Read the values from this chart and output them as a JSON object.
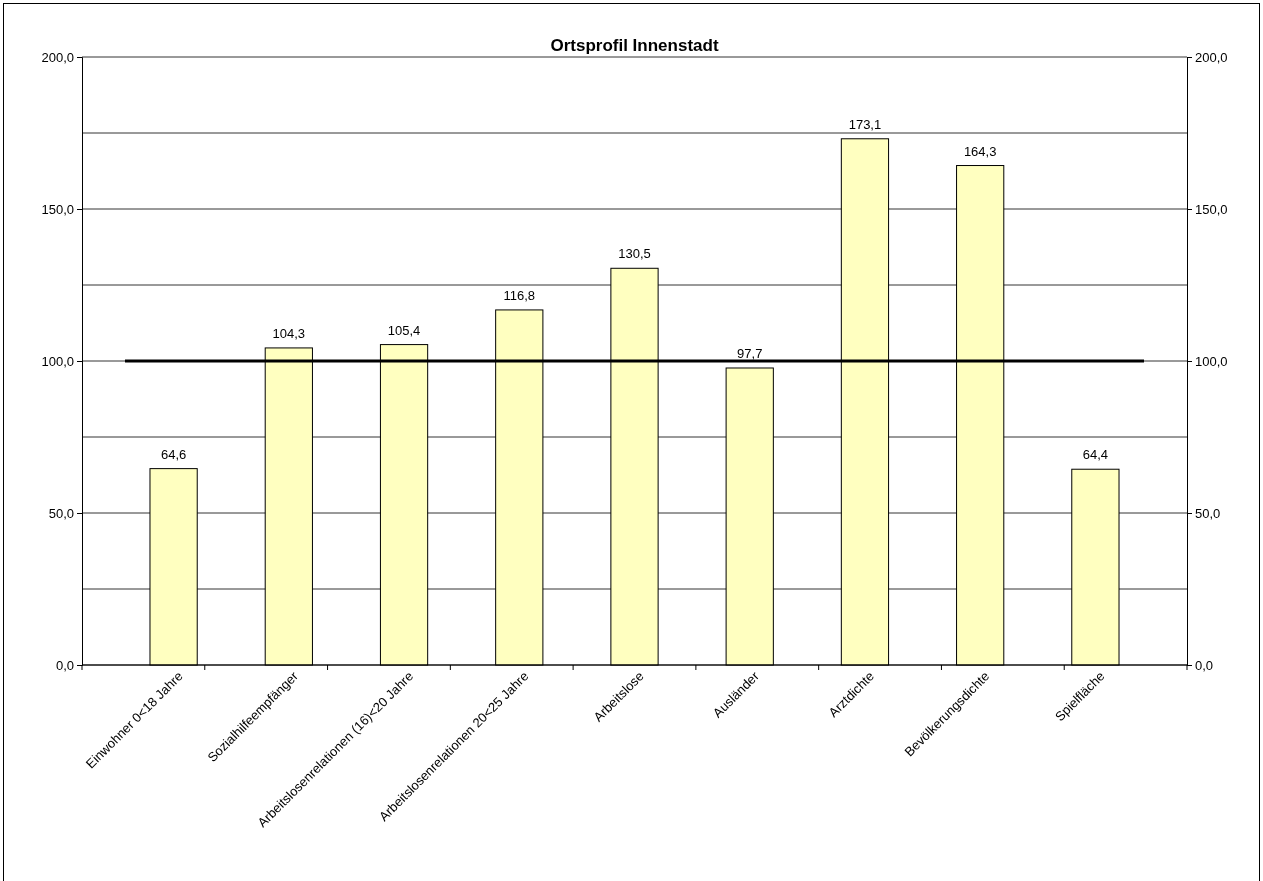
{
  "chart_data": {
    "type": "bar",
    "title": "Ortsprofil Innenstadt",
    "categories": [
      "Einwohner 0<18 Jahre",
      "Sozialhilfeempfänger",
      "Arbeitslosenrelationen (16)<20 Jahre",
      "Arbeitslosenrelationen 20<25 Jahre",
      "Arbeitslose",
      "Ausländer",
      "Arztdichte",
      "Bevölkerungsdichte",
      "Spielfläche"
    ],
    "values": [
      64.6,
      104.3,
      105.4,
      116.8,
      130.5,
      97.7,
      173.1,
      164.3,
      64.4
    ],
    "color": "#ffffc0",
    "ylim": [
      0,
      200
    ],
    "yticks": [
      {
        "value": 0,
        "label": "0,0"
      },
      {
        "value": 25,
        "label": null
      },
      {
        "value": 50,
        "label": "50,0"
      },
      {
        "value": 75,
        "label": null
      },
      {
        "value": 100,
        "label": "100,0"
      },
      {
        "value": 125,
        "label": null
      },
      {
        "value": 150,
        "label": "150,0"
      },
      {
        "value": 175,
        "label": null
      },
      {
        "value": 200,
        "label": "200,0"
      }
    ],
    "y2lim": [
      0,
      200
    ],
    "y2ticks": [
      {
        "value": 0,
        "label": "0,0"
      },
      {
        "value": 50,
        "label": "50,0"
      },
      {
        "value": 100,
        "label": "100,0"
      },
      {
        "value": 150,
        "label": "150,0"
      },
      {
        "value": 200,
        "label": "200,0"
      }
    ],
    "grid": "y",
    "value_labels": [
      "64,6",
      "104,3",
      "105,4",
      "116,8",
      "130,5",
      "97,7",
      "173,1",
      "164,3",
      "64,4"
    ],
    "ref_lines": [
      {
        "axis": "y",
        "value": 100,
        "color": "#000000"
      }
    ]
  }
}
